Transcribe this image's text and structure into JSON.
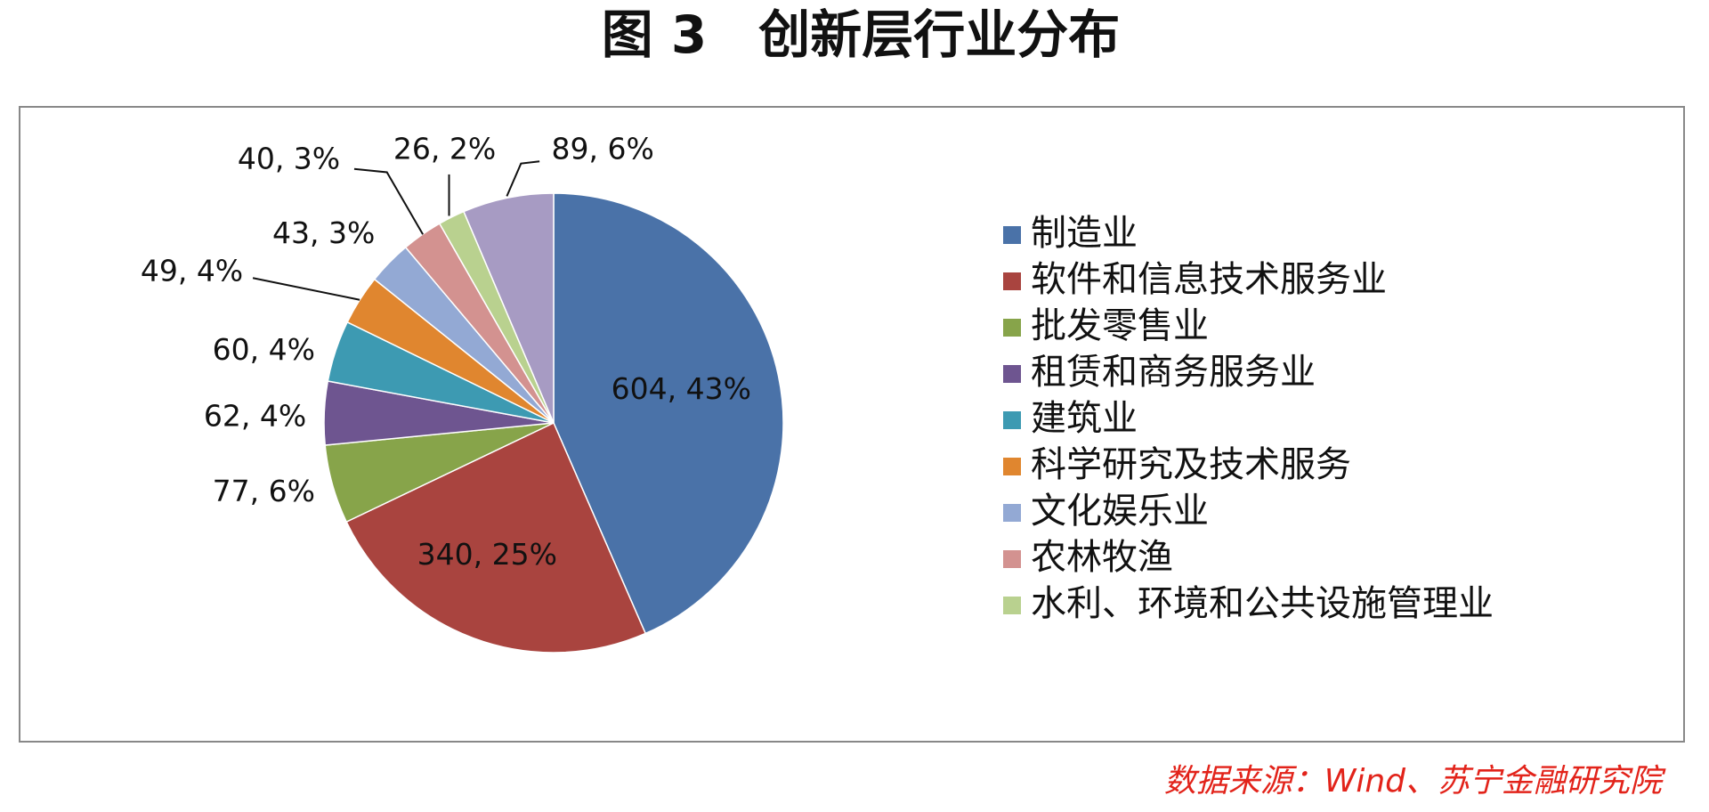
{
  "chart_data": {
    "type": "pie",
    "title": "图 3　创新层行业分布",
    "categories": [
      "制造业",
      "软件和信息技术服务业",
      "批发零售业",
      "租赁和商务服务业",
      "建筑业",
      "科学研究及技术服务",
      "文化娱乐业",
      "农林牧渔",
      "水利、环境和公共设施管理业",
      null
    ],
    "values": [
      604,
      340,
      77,
      62,
      60,
      49,
      43,
      40,
      26,
      89
    ],
    "value_labels": [
      "604, 43%",
      "340, 25%",
      "77, 6%",
      "62, 4%",
      "60, 4%",
      "49, 4%",
      "43, 3%",
      "40, 3%",
      "26, 2%",
      "89, 6%"
    ],
    "colors": [
      "#4a72a8",
      "#a9443f",
      "#87a44a",
      "#6e5590",
      "#3d9ab2",
      "#e0862f",
      "#93a9d4",
      "#d39290",
      "#b9d18f",
      "#a79bc3"
    ],
    "source": "数据来源：Wind、苏宁金融研究院"
  }
}
